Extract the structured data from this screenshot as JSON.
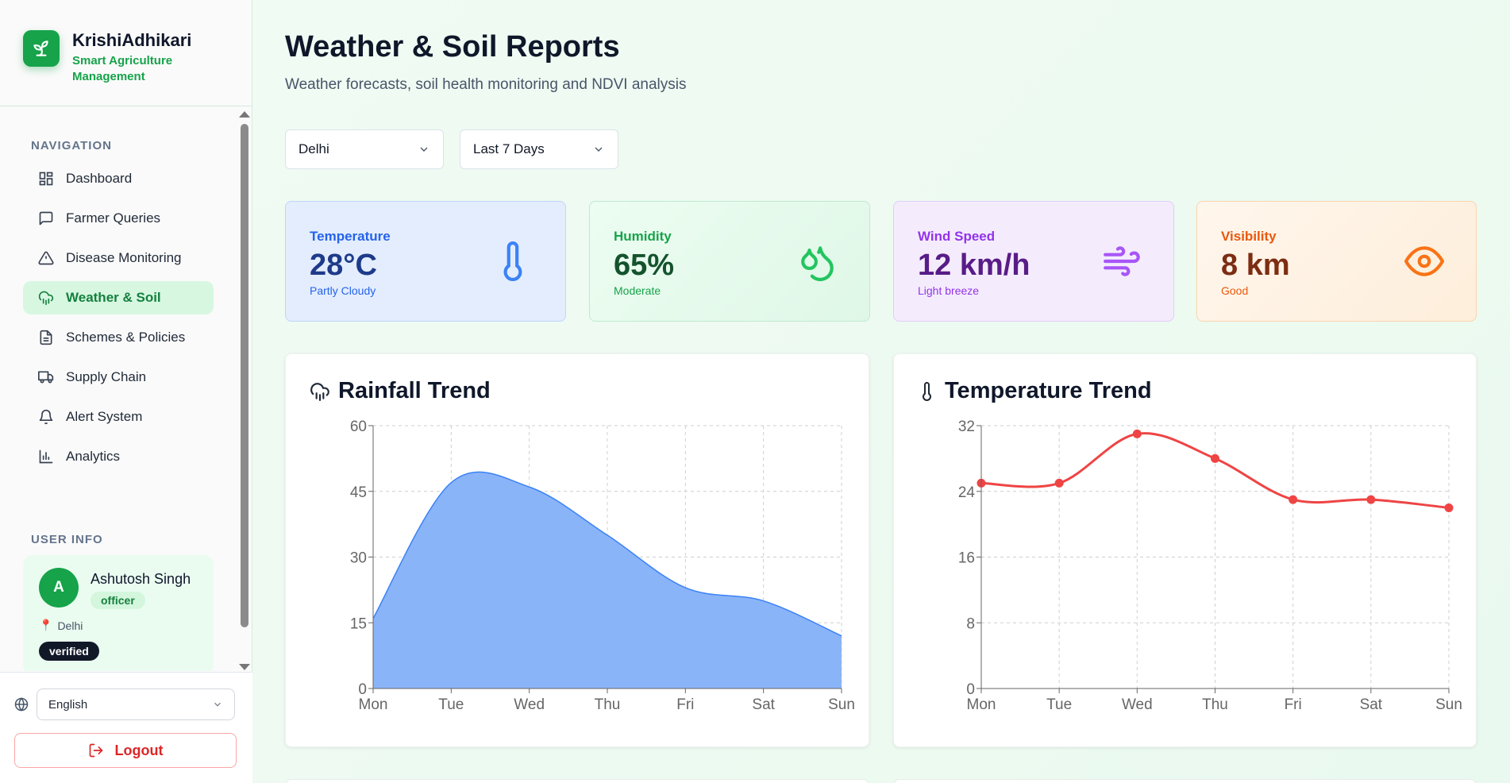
{
  "brand": {
    "name": "KrishiAdhikari",
    "subtitle": "Smart Agriculture Management"
  },
  "nav": {
    "section_label": "NAVIGATION",
    "items": [
      {
        "label": "Dashboard",
        "icon": "dashboard-icon"
      },
      {
        "label": "Farmer Queries",
        "icon": "message-icon"
      },
      {
        "label": "Disease Monitoring",
        "icon": "alert-triangle-icon"
      },
      {
        "label": "Weather & Soil",
        "icon": "cloud-rain-icon",
        "active": true
      },
      {
        "label": "Schemes & Policies",
        "icon": "document-icon"
      },
      {
        "label": "Supply Chain",
        "icon": "truck-icon"
      },
      {
        "label": "Alert System",
        "icon": "bell-icon"
      },
      {
        "label": "Analytics",
        "icon": "bar-chart-icon"
      }
    ]
  },
  "user": {
    "section_label": "USER INFO",
    "initial": "A",
    "name": "Ashutosh Singh",
    "role": "officer",
    "location": "Delhi",
    "status": "verified"
  },
  "footer": {
    "language": "English",
    "logout_label": "Logout"
  },
  "page": {
    "title": "Weather & Soil Reports",
    "subtitle": "Weather forecasts, soil health monitoring and NDVI analysis"
  },
  "filters": {
    "city": "Delhi",
    "range": "Last 7 Days"
  },
  "stats": {
    "temperature": {
      "label": "Temperature",
      "value": "28°C",
      "desc": "Partly Cloudy",
      "icon": "thermometer-icon"
    },
    "humidity": {
      "label": "Humidity",
      "value": "65%",
      "desc": "Moderate",
      "icon": "droplets-icon"
    },
    "wind": {
      "label": "Wind Speed",
      "value": "12 km/h",
      "desc": "Light breeze",
      "icon": "wind-icon"
    },
    "visibility": {
      "label": "Visibility",
      "value": "8 km",
      "desc": "Good",
      "icon": "eye-icon"
    }
  },
  "colors": {
    "accent": "#16a34a",
    "rain_fill": "#8ab4f8",
    "rain_line": "#3b82f6",
    "temp_line": "#ef4444"
  },
  "chart_data": [
    {
      "type": "area",
      "title": "Rainfall Trend",
      "categories": [
        "Mon",
        "Tue",
        "Wed",
        "Thu",
        "Fri",
        "Sat",
        "Sun"
      ],
      "values": [
        16,
        47,
        46,
        35,
        23,
        20,
        12
      ],
      "ylim": [
        0,
        60
      ],
      "yticks": [
        0,
        15,
        30,
        45,
        60
      ],
      "grid": true
    },
    {
      "type": "line",
      "title": "Temperature Trend",
      "categories": [
        "Mon",
        "Tue",
        "Wed",
        "Thu",
        "Fri",
        "Sat",
        "Sun"
      ],
      "values": [
        25,
        25,
        31,
        28,
        23,
        23,
        22
      ],
      "ylim": [
        0,
        32
      ],
      "yticks": [
        0,
        8,
        16,
        24,
        32
      ],
      "grid": true
    }
  ]
}
